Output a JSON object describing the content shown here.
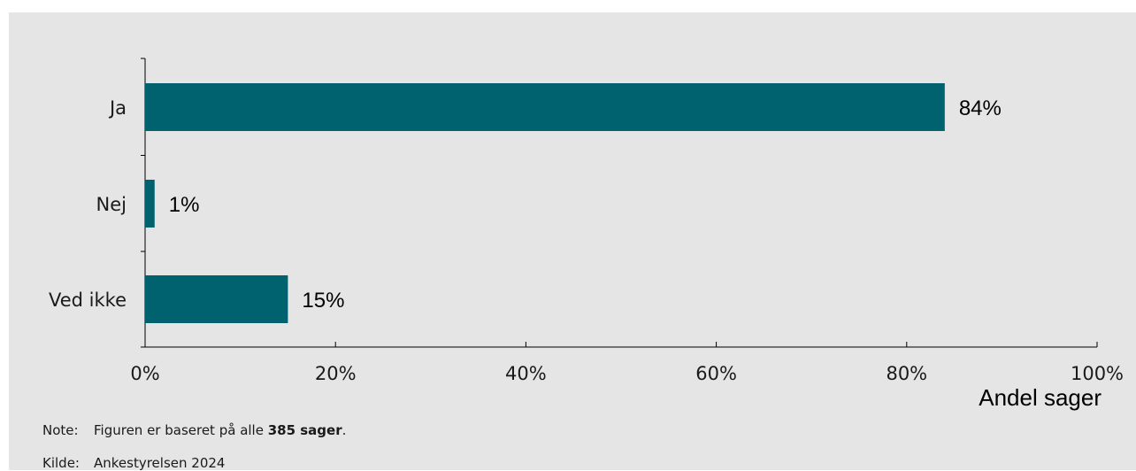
{
  "chart_data": {
    "type": "bar",
    "orientation": "horizontal",
    "categories": [
      "Ja",
      "Nej",
      "Ved ikke"
    ],
    "values": [
      84,
      1,
      15
    ],
    "data_labels": [
      "84%",
      "1%",
      "15%"
    ],
    "xlim": [
      0,
      100
    ],
    "xticks": [
      "0%",
      "20%",
      "40%",
      "60%",
      "80%",
      "100%"
    ],
    "xlabel": "Andel sager",
    "bar_color": "#00616f",
    "grid": false
  },
  "footer": {
    "note_label": "Note:",
    "note_text_before": "Figuren er baseret på alle ",
    "note_text_bold": "385 sager",
    "note_text_after": ".",
    "source_label": "Kilde:",
    "source_text": "Ankestyrelsen 2024"
  }
}
